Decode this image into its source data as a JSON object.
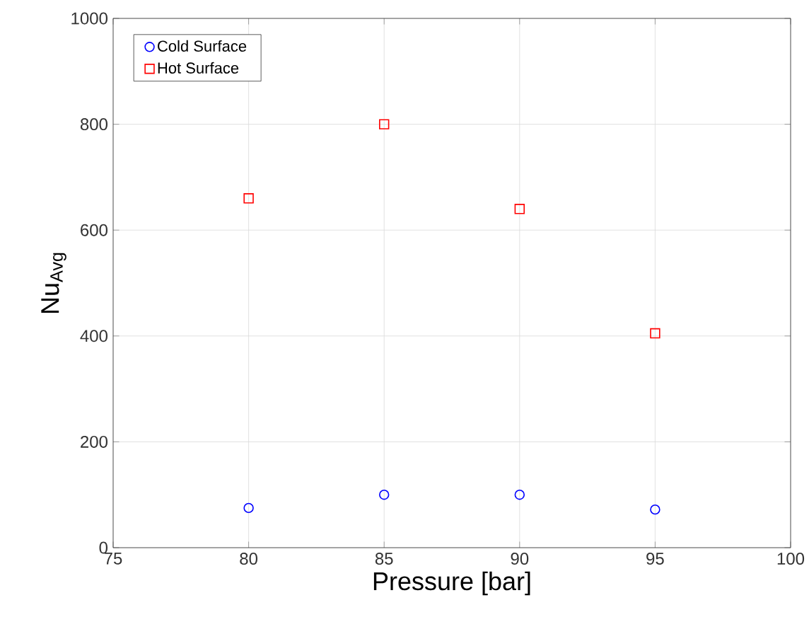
{
  "chart_data": {
    "type": "scatter",
    "xlabel": "Pressure [bar]",
    "ylabel": "Nu$_{Avg}$",
    "xlim": [
      75,
      100
    ],
    "xticks": [
      75,
      80,
      85,
      90,
      95,
      100
    ],
    "ylim": [
      0,
      1000
    ],
    "yticks": [
      0,
      200,
      400,
      600,
      800,
      1000
    ],
    "grid": true,
    "legend": "top left",
    "series": [
      {
        "name": "Cold Surface",
        "color": "#0000ff",
        "marker": "circle",
        "x": [
          80,
          85,
          90,
          95
        ],
        "values": [
          75,
          100,
          100,
          72
        ]
      },
      {
        "name": "Hot Surface",
        "color": "#ff0000",
        "marker": "square",
        "x": [
          80,
          85,
          90,
          95
        ],
        "values": [
          660,
          800,
          640,
          405
        ]
      }
    ]
  }
}
